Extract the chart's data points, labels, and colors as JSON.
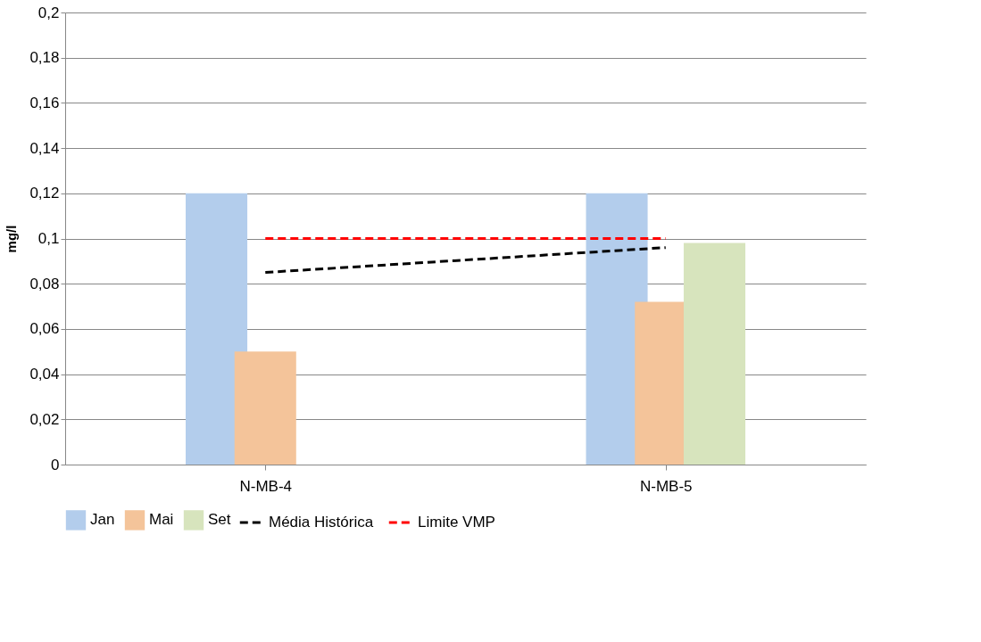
{
  "chart_data": {
    "type": "bar",
    "ylabel": "mg/l",
    "categories": [
      "N-MB-4",
      "N-MB-5"
    ],
    "series": [
      {
        "name": "Jan",
        "color": "#b3cdec",
        "values": [
          0.12,
          0.12
        ]
      },
      {
        "name": "Mai",
        "color": "#f4c49a",
        "values": [
          0.05,
          0.072
        ]
      },
      {
        "name": "Set",
        "color": "#d7e4bd",
        "values": [
          null,
          0.098
        ]
      },
      {
        "name": "Média Histórica",
        "type": "line",
        "line_style": "dashed",
        "color": "#000000",
        "values": [
          0.085,
          0.096
        ]
      },
      {
        "name": "Limite VMP",
        "type": "line",
        "line_style": "dashed",
        "color": "#ff0000",
        "values": [
          0.1,
          0.1
        ]
      }
    ],
    "ylim": [
      0,
      0.2
    ],
    "yticks": [
      0,
      {
        "value": 0.02,
        "label": "0,02"
      },
      {
        "value": 0.04,
        "label": "0,04"
      },
      {
        "value": 0.06,
        "label": "0,06"
      },
      {
        "value": 0.08,
        "label": "0,08"
      },
      {
        "value": 0.1,
        "label": "0,1"
      },
      {
        "value": 0.12,
        "label": "0,12"
      },
      {
        "value": 0.14,
        "label": "0,14"
      },
      {
        "value": 0.16,
        "label": "0,16"
      },
      {
        "value": 0.18,
        "label": "0,18"
      },
      {
        "value": 0.2,
        "label": "0,2"
      }
    ],
    "grid": "y",
    "legend": "bottom"
  }
}
